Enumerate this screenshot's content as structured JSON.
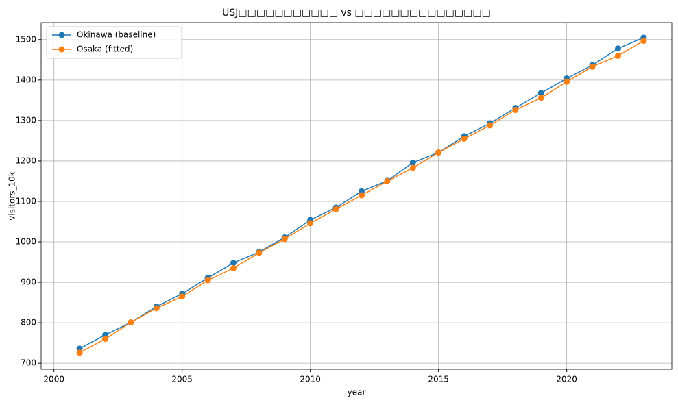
{
  "chart_data": {
    "type": "line",
    "title": "USJ□□□□□□□□□□□ vs □□□□□□□□□□□□□□□",
    "x_label": "year",
    "y_label": "visitors_10k",
    "x": [
      2001,
      2002,
      2003,
      2004,
      2005,
      2006,
      2007,
      2008,
      2009,
      2010,
      2011,
      2012,
      2013,
      2014,
      2015,
      2016,
      2017,
      2018,
      2019,
      2020,
      2021,
      2022,
      2023
    ],
    "series": [
      {
        "name": "Okinawa (baseline)",
        "color": "#1f77b4",
        "values": [
          736,
          770,
          801,
          840,
          872,
          911,
          948,
          975,
          1011,
          1054,
          1085,
          1125,
          1151,
          1196,
          1221,
          1261,
          1293,
          1331,
          1368,
          1404,
          1437,
          1478,
          1505
        ]
      },
      {
        "name": "Osaka (fitted)",
        "color": "#ff7f0e",
        "values": [
          726,
          760,
          801,
          836,
          865,
          905,
          935,
          973,
          1007,
          1046,
          1081,
          1115,
          1150,
          1183,
          1221,
          1255,
          1288,
          1326,
          1356,
          1396,
          1433,
          1460,
          1497
        ]
      }
    ],
    "xlim": [
      1999.5,
      2024.1
    ],
    "ylim": [
      685,
      1542
    ],
    "xticks": [
      2000,
      2005,
      2010,
      2015,
      2020
    ],
    "yticks": [
      700,
      800,
      900,
      1000,
      1100,
      1200,
      1300,
      1400,
      1500
    ],
    "grid": true,
    "legend": "upper-left",
    "marker": "circle"
  }
}
